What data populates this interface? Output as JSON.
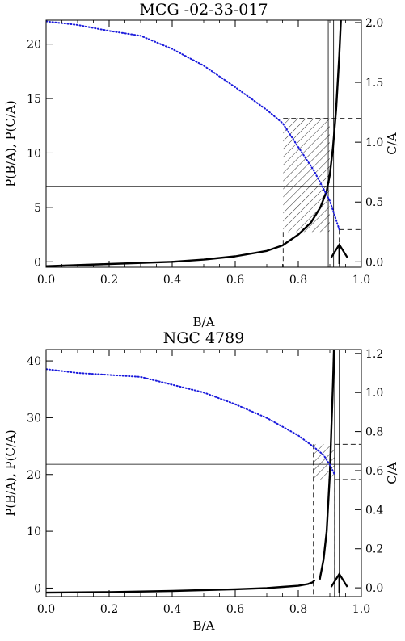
{
  "chart_data": [
    {
      "type": "line",
      "title": "MCG -02-33-017",
      "xlabel": "B/A",
      "ylabel": "P(B/A), P(C/A)",
      "ylabel_right": "C/A",
      "xlim": [
        0.0,
        1.0
      ],
      "ylim": [
        -0.5,
        22.2
      ],
      "ylim_right": [
        -0.045,
        2.02
      ],
      "x_ticks": [
        "0.0",
        "0.2",
        "0.4",
        "0.6",
        "0.8",
        "1.0"
      ],
      "y_ticks": [
        "0",
        "5",
        "10",
        "15",
        "20"
      ],
      "y_ticks_right": [
        "0.0",
        "0.5",
        "1.0",
        "1.5",
        "2.0"
      ],
      "series": [
        {
          "style": "solid-thick",
          "x": [
            0.0,
            0.2,
            0.4,
            0.5,
            0.6,
            0.7,
            0.75,
            0.8,
            0.84,
            0.87,
            0.89,
            0.9,
            0.91,
            0.92,
            0.93,
            0.935
          ],
          "y": [
            -0.4,
            -0.2,
            0.0,
            0.2,
            0.5,
            1.0,
            1.5,
            2.5,
            3.6,
            5.0,
            6.5,
            8.0,
            10.5,
            14.0,
            19.0,
            22.2
          ]
        },
        {
          "style": "dotted-blue",
          "axis": "right",
          "x": [
            0.0,
            0.1,
            0.2,
            0.3,
            0.4,
            0.5,
            0.6,
            0.7,
            0.75,
            0.8,
            0.85,
            0.9,
            0.93
          ],
          "y": [
            2.01,
            1.98,
            1.93,
            1.89,
            1.78,
            1.64,
            1.46,
            1.27,
            1.16,
            0.96,
            0.76,
            0.51,
            0.27
          ]
        }
      ],
      "bands": {
        "x": [
          0.752,
          0.9
        ],
        "y_right": [
          0.25,
          1.2
        ]
      },
      "vlines": [
        {
          "x": 0.895,
          "style": "solid"
        },
        {
          "x": 0.912,
          "style": "solid"
        },
        {
          "x": 0.752,
          "style": "dashed",
          "from_right": 0.25
        },
        {
          "x": 0.93,
          "style": "dashed",
          "from_right": 0.27
        }
      ],
      "hlines": [
        {
          "y": 6.9,
          "style": "solid"
        },
        {
          "y_right": 1.2,
          "style": "dashed",
          "x_from": 0.752
        },
        {
          "y_right": 0.27,
          "style": "dashed",
          "x_from": 0.93
        }
      ],
      "arrow": {
        "x": 0.93
      }
    },
    {
      "type": "line",
      "title": "NGC 4789",
      "xlabel": "B/A",
      "ylabel": "P(B/A), P(C/A)",
      "ylabel_right": "C/A",
      "xlim": [
        0.0,
        1.0
      ],
      "ylim": [
        -1.5,
        42.0
      ],
      "ylim_right": [
        -0.045,
        1.22
      ],
      "x_ticks": [
        "0.0",
        "0.2",
        "0.4",
        "0.6",
        "0.8",
        "1.0"
      ],
      "y_ticks": [
        "0",
        "10",
        "20",
        "30",
        "40"
      ],
      "y_ticks_right": [
        "0.0",
        "0.2",
        "0.4",
        "0.6",
        "0.8",
        "1.0",
        "1.2"
      ],
      "series": [
        {
          "style": "solid-thick",
          "x": [
            0.0,
            0.2,
            0.4,
            0.6,
            0.7,
            0.75,
            0.8,
            0.83,
            0.845,
            0.852
          ],
          "y": [
            -0.8,
            -0.7,
            -0.5,
            -0.2,
            0.0,
            0.2,
            0.4,
            0.7,
            1.0,
            1.4
          ]
        },
        {
          "style": "solid-thick",
          "x": [
            0.868,
            0.88,
            0.89,
            0.9,
            0.905,
            0.91,
            0.913
          ],
          "y": [
            1.5,
            5.0,
            10.0,
            20.0,
            28.0,
            36.0,
            42.0
          ]
        },
        {
          "style": "dotted-blue",
          "axis": "right",
          "x": [
            0.0,
            0.1,
            0.2,
            0.3,
            0.4,
            0.5,
            0.6,
            0.7,
            0.8,
            0.85,
            0.88,
            0.9,
            0.915
          ],
          "y": [
            1.12,
            1.1,
            1.09,
            1.08,
            1.04,
            1.0,
            0.94,
            0.87,
            0.78,
            0.72,
            0.68,
            0.63,
            0.58
          ]
        }
      ],
      "bands": {
        "x": [
          0.848,
          0.915
        ],
        "y_right": [
          0.555,
          0.735
        ]
      },
      "vlines": [
        {
          "x": 0.915,
          "style": "solid"
        },
        {
          "x": 0.93,
          "style": "solid"
        },
        {
          "x": 0.848,
          "style": "dashed",
          "from_right": 0.735
        },
        {
          "x": 0.915,
          "style": "dashed",
          "from_right": 0.555
        }
      ],
      "hlines": [
        {
          "y": 21.8,
          "style": "solid"
        },
        {
          "y_right": 0.735,
          "style": "dashed",
          "x_from": 0.915
        },
        {
          "y_right": 0.555,
          "style": "dashed",
          "x_from": 0.915
        }
      ],
      "arrow": {
        "x": 0.93
      }
    }
  ]
}
